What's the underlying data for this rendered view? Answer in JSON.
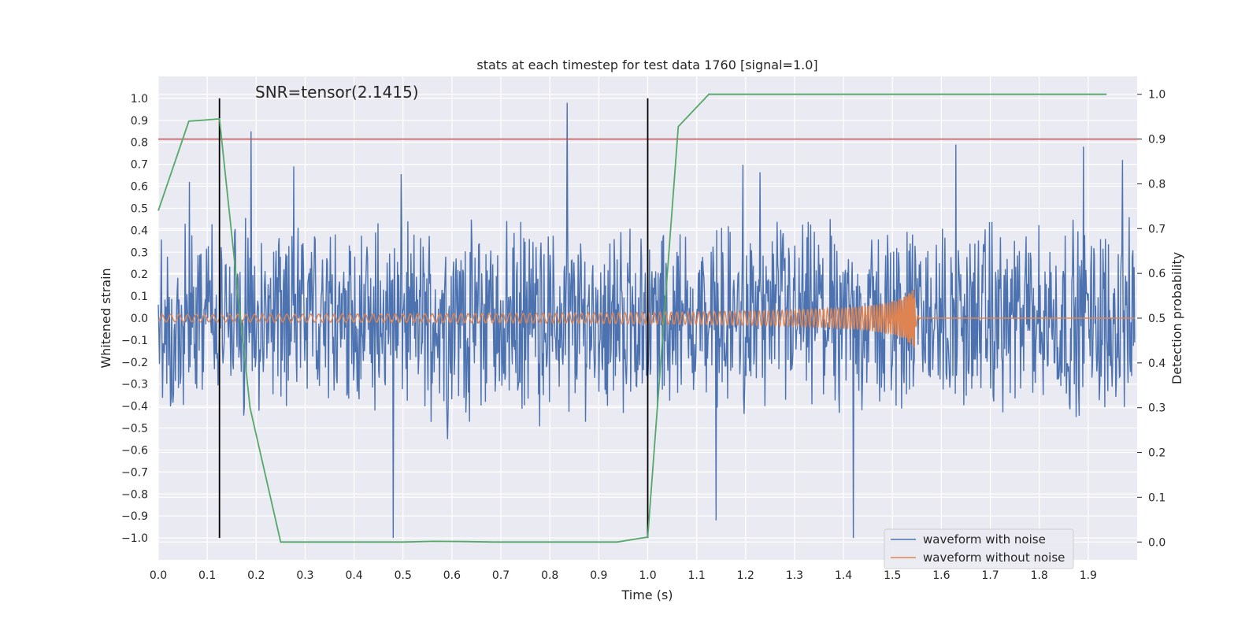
{
  "chart_data": {
    "type": "line",
    "title": "stats at each timestep for test data 1760 [signal=1.0]",
    "annotation": "SNR=tensor(2.1415)",
    "xlabel": "Time (s)",
    "ylabel": "Whitened strain",
    "y2label": "Detection probability",
    "xlim": [
      0.0,
      2.0
    ],
    "ylim": [
      -1.1,
      1.1
    ],
    "y2lim": [
      -0.04,
      1.04
    ],
    "xticks": [
      "0.0",
      "0.1",
      "0.2",
      "0.3",
      "0.4",
      "0.5",
      "0.6",
      "0.7",
      "0.8",
      "0.9",
      "1.0",
      "1.1",
      "1.2",
      "1.3",
      "1.4",
      "1.5",
      "1.6",
      "1.7",
      "1.8",
      "1.9"
    ],
    "yticks": [
      "1.0",
      "0.9",
      "0.8",
      "0.7",
      "0.6",
      "0.5",
      "0.4",
      "0.3",
      "0.2",
      "0.1",
      "0.0",
      "−0.1",
      "−0.2",
      "−0.3",
      "−0.4",
      "−0.5",
      "−0.6",
      "−0.7",
      "−0.8",
      "−0.9",
      "−1.0"
    ],
    "y2ticks": [
      "1.0",
      "0.9",
      "0.8",
      "0.7",
      "0.6",
      "0.5",
      "0.4",
      "0.3",
      "0.2",
      "0.1",
      "0.0"
    ],
    "legend": {
      "placement": "bottom-right",
      "entries": [
        {
          "name": "waveform with noise",
          "color": "#4c72b0"
        },
        {
          "name": "waveform without noise",
          "color": "#dd8452"
        }
      ]
    },
    "threshold": {
      "axis": "right",
      "value": 0.9,
      "color": "#c44e52"
    },
    "vlines": [
      {
        "x": 0.125,
        "ymin": -1.0,
        "ymax": 1.0
      },
      {
        "x": 1.0,
        "ymin": -1.0,
        "ymax": 1.0
      }
    ],
    "series": [
      {
        "name": "waveform with noise",
        "axis": "left",
        "color": "#4c72b0",
        "note": "dense noisy whitened strain, roughly ±0.4 with spikes to ±1.0",
        "notable_points": [
          [
            0.063,
            0.62
          ],
          [
            0.19,
            0.85
          ],
          [
            0.48,
            -1.0
          ],
          [
            0.835,
            0.98
          ],
          [
            1.14,
            -0.92
          ],
          [
            1.42,
            -1.0
          ],
          [
            1.63,
            0.79
          ],
          [
            1.89,
            0.78
          ],
          [
            1.97,
            0.72
          ]
        ]
      },
      {
        "name": "waveform without noise",
        "axis": "left",
        "color": "#dd8452",
        "note": "chirp signal, amplitude grows to about 0.14 at t=1.54 then merges to 0"
      },
      {
        "name": "Detection probability",
        "axis": "right",
        "color": "#55a868",
        "x": [
          0.0,
          0.0625,
          0.125,
          0.1875,
          0.25,
          0.3125,
          0.375,
          0.4375,
          0.5,
          0.5625,
          0.625,
          0.6875,
          0.75,
          0.8125,
          0.875,
          0.9375,
          1.0,
          1.0625,
          1.125,
          1.1875,
          1.25,
          1.3125,
          1.375,
          1.4375,
          1.5,
          1.5625,
          1.625,
          1.6875,
          1.75,
          1.8125,
          1.875,
          1.9375
        ],
        "values": [
          0.74,
          0.94,
          0.945,
          0.3,
          0.0,
          0.0,
          0.0,
          0.0,
          0.0,
          0.0015,
          0.001,
          0.0,
          0.0,
          0.0,
          0.0,
          0.0,
          0.011,
          0.928,
          1.0,
          1.0,
          1.0,
          1.0,
          1.0,
          1.0,
          1.0,
          1.0,
          1.0,
          1.0,
          1.0,
          1.0,
          1.0,
          1.0
        ]
      }
    ]
  }
}
